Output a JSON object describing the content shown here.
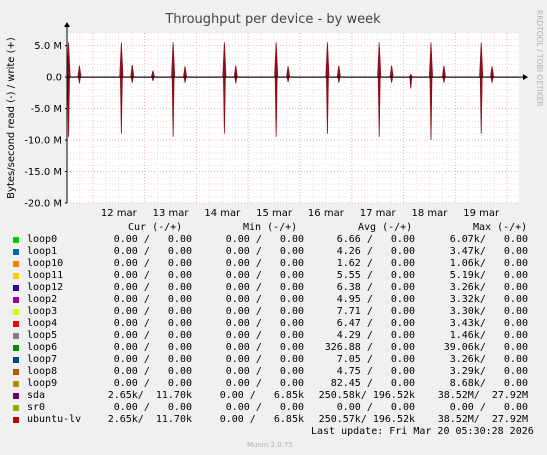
{
  "chart_data": {
    "type": "line",
    "title": "Throughput per device - by week",
    "ylabel": "Bytes/second read (-) / write (+)",
    "side_label": "RRDTOOL / TOBI OETIKER",
    "ylim": [
      -20000000,
      7000000
    ],
    "yticks": [
      {
        "value": 5000000,
        "label": "5.0 M"
      },
      {
        "value": 0,
        "label": "0.0"
      },
      {
        "value": -5000000,
        "label": "-5.0 M"
      },
      {
        "value": -10000000,
        "label": "-10.0 M"
      },
      {
        "value": -15000000,
        "label": "-15.0 M"
      },
      {
        "value": -20000000,
        "label": "-20.0 M"
      }
    ],
    "xlim": [
      11.5,
      20.23
    ],
    "xticks": [
      {
        "value": 12,
        "label": "12 mar"
      },
      {
        "value": 13,
        "label": "13 mar"
      },
      {
        "value": 14,
        "label": "14 mar"
      },
      {
        "value": 15,
        "label": "15 mar"
      },
      {
        "value": 16,
        "label": "16 mar"
      },
      {
        "value": 17,
        "label": "17 mar"
      },
      {
        "value": 18,
        "label": "18 mar"
      },
      {
        "value": 19,
        "label": "19 mar"
      }
    ],
    "grid": true,
    "series": [
      {
        "name": "ubuntu-lv",
        "color": "#8a0f1c",
        "spikes": [
          {
            "x": 11.53,
            "up": 5500000,
            "down": -9500000
          },
          {
            "x": 11.74,
            "up": 1800000,
            "down": -1000000
          },
          {
            "x": 12.55,
            "up": 5500000,
            "down": -9000000
          },
          {
            "x": 12.76,
            "up": 1900000,
            "down": -900000
          },
          {
            "x": 13.16,
            "up": 1000000,
            "down": -600000
          },
          {
            "x": 13.55,
            "up": 5500000,
            "down": -9500000
          },
          {
            "x": 13.78,
            "up": 1700000,
            "down": -900000
          },
          {
            "x": 14.54,
            "up": 5500000,
            "down": -9000000
          },
          {
            "x": 14.76,
            "up": 1800000,
            "down": -1000000
          },
          {
            "x": 15.54,
            "up": 5500000,
            "down": -9500000
          },
          {
            "x": 15.77,
            "up": 1700000,
            "down": -800000
          },
          {
            "x": 16.53,
            "up": 5500000,
            "down": -9000000
          },
          {
            "x": 16.75,
            "up": 1800000,
            "down": -900000
          },
          {
            "x": 17.53,
            "up": 5500000,
            "down": -9500000
          },
          {
            "x": 17.77,
            "up": 1800000,
            "down": -900000
          },
          {
            "x": 18.14,
            "up": 400000,
            "down": -1800000
          },
          {
            "x": 18.53,
            "up": 5500000,
            "down": -10000000
          },
          {
            "x": 18.78,
            "up": 1800000,
            "down": -900000
          },
          {
            "x": 19.5,
            "up": 5500000,
            "down": -9000000
          },
          {
            "x": 19.71,
            "up": 1700000,
            "down": -900000
          }
        ]
      }
    ]
  },
  "legend": {
    "headers": {
      "cur": "Cur (-/+)",
      "min": "Min (-/+)",
      "avg": "Avg (-/+)",
      "max": "Max (-/+)"
    },
    "rows": [
      {
        "name": "loop0",
        "color": "#00cc00",
        "cur": "0.00 /   0.00",
        "min": "0.00 /   0.00",
        "avg": "6.66 /   0.00",
        "max": "6.07k/   0.00"
      },
      {
        "name": "loop1",
        "color": "#0066b3",
        "cur": "0.00 /   0.00",
        "min": "0.00 /   0.00",
        "avg": "4.26 /   0.00",
        "max": "3.47k/   0.00"
      },
      {
        "name": "loop10",
        "color": "#ff8000",
        "cur": "0.00 /   0.00",
        "min": "0.00 /   0.00",
        "avg": "1.62 /   0.00",
        "max": "1.06k/   0.00"
      },
      {
        "name": "loop11",
        "color": "#ffcc00",
        "cur": "0.00 /   0.00",
        "min": "0.00 /   0.00",
        "avg": "5.55 /   0.00",
        "max": "5.19k/   0.00"
      },
      {
        "name": "loop12",
        "color": "#330099",
        "cur": "0.00 /   0.00",
        "min": "0.00 /   0.00",
        "avg": "6.38 /   0.00",
        "max": "3.26k/   0.00"
      },
      {
        "name": "loop2",
        "color": "#990099",
        "cur": "0.00 /   0.00",
        "min": "0.00 /   0.00",
        "avg": "4.95 /   0.00",
        "max": "3.32k/   0.00"
      },
      {
        "name": "loop3",
        "color": "#ccff00",
        "cur": "0.00 /   0.00",
        "min": "0.00 /   0.00",
        "avg": "7.71 /   0.00",
        "max": "3.30k/   0.00"
      },
      {
        "name": "loop4",
        "color": "#ff0000",
        "cur": "0.00 /   0.00",
        "min": "0.00 /   0.00",
        "avg": "6.47 /   0.00",
        "max": "3.43k/   0.00"
      },
      {
        "name": "loop5",
        "color": "#808080",
        "cur": "0.00 /   0.00",
        "min": "0.00 /   0.00",
        "avg": "4.29 /   0.00",
        "max": "1.46k/   0.00"
      },
      {
        "name": "loop6",
        "color": "#008f00",
        "cur": "0.00 /   0.00",
        "min": "0.00 /   0.00",
        "avg": "326.88 /   0.00",
        "max": "39.06k/   0.00"
      },
      {
        "name": "loop7",
        "color": "#00487d",
        "cur": "0.00 /   0.00",
        "min": "0.00 /   0.00",
        "avg": "7.05 /   0.00",
        "max": "3.26k/   0.00"
      },
      {
        "name": "loop8",
        "color": "#b35a00",
        "cur": "0.00 /   0.00",
        "min": "0.00 /   0.00",
        "avg": "4.75 /   0.00",
        "max": "3.29k/   0.00"
      },
      {
        "name": "loop9",
        "color": "#b38f00",
        "cur": "0.00 /   0.00",
        "min": "0.00 /   0.00",
        "avg": "82.45 /   0.00",
        "max": "8.68k/   0.00"
      },
      {
        "name": "sda",
        "color": "#6b006b",
        "cur": "2.65k/  11.70k",
        "min": "0.00 /   6.85k",
        "avg": "250.58k/ 196.52k",
        "max": "38.52M/  27.92M"
      },
      {
        "name": "sr0",
        "color": "#8fb300",
        "cur": "0.00 /   0.00",
        "min": "0.00 /   0.00",
        "avg": "0.00 /   0.00",
        "max": "0.00 /   0.00"
      },
      {
        "name": "ubuntu-lv",
        "color": "#b30000",
        "cur": "2.65k/  11.70k",
        "min": "0.00 /   6.85k",
        "avg": "250.57k/ 196.52k",
        "max": "38.52M/  27.92M"
      }
    ]
  },
  "footer": {
    "last_update": "Last update: Fri Mar 20 05:30:28 2026",
    "version": "Munin 2.0.75"
  }
}
